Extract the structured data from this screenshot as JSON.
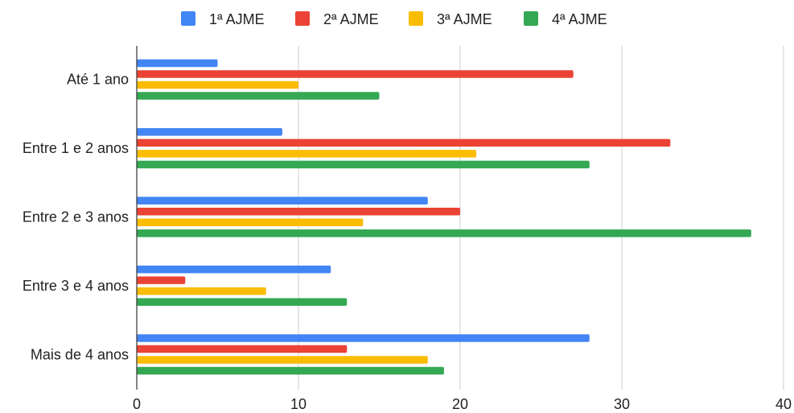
{
  "chart_data": {
    "type": "bar",
    "orientation": "horizontal",
    "categories": [
      "Até 1 ano",
      "Entre 1 e 2 anos",
      "Entre 2 e 3 anos",
      "Entre 3 e 4 anos",
      "Mais de 4 anos"
    ],
    "series": [
      {
        "name": "1ª AJME",
        "color": "#4285f4",
        "values": [
          5,
          9,
          18,
          12,
          28
        ]
      },
      {
        "name": "2ª AJME",
        "color": "#ea4335",
        "values": [
          27,
          33,
          20,
          3,
          13
        ]
      },
      {
        "name": "3ª AJME",
        "color": "#fbbc04",
        "values": [
          10,
          21,
          14,
          8,
          18
        ]
      },
      {
        "name": "4ª AJME",
        "color": "#34a853",
        "values": [
          15,
          28,
          38,
          13,
          19
        ]
      }
    ],
    "xlim": [
      0,
      40
    ],
    "xticks": [
      0,
      10,
      20,
      30,
      40
    ],
    "grid": true,
    "legend_position": "top-center"
  }
}
